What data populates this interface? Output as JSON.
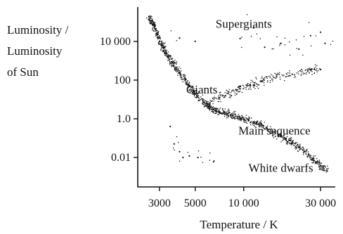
{
  "chart_data": {
    "type": "scatter",
    "title": "",
    "xlabel": "Temperature / K",
    "ylabel_lines": [
      "Luminosity /",
      "Luminosity",
      "of Sun"
    ],
    "x_scale": "reversed-log",
    "y_scale": "log",
    "xlim": [
      2200,
      37000
    ],
    "ylim": [
      0.0003,
      600000
    ],
    "x_ticks": [
      {
        "value": 3000,
        "label": "3000"
      },
      {
        "value": 5000,
        "label": "5000"
      },
      {
        "value": 10000,
        "label": "10 000"
      },
      {
        "value": 30000,
        "label": "30 000"
      }
    ],
    "y_ticks": [
      {
        "value": 0.01,
        "label": "0.01"
      },
      {
        "value": 1,
        "label": "1.0"
      },
      {
        "value": 100,
        "label": "100"
      },
      {
        "value": 10000,
        "label": "10 000"
      }
    ],
    "grid": false,
    "annotations": [
      {
        "text": "Supergiants",
        "x": 10000,
        "y": 50000
      },
      {
        "text": "Giants",
        "x": 5500,
        "y": 20
      },
      {
        "text": "Main sequence",
        "x": 15500,
        "y": 0.15
      },
      {
        "text": "White dwarfs",
        "x": 17000,
        "y": 0.0018
      }
    ],
    "series": [
      {
        "region": "main sequence",
        "x": [
          2600,
          2800,
          3000,
          3300,
          3600,
          4000,
          4500,
          5000,
          5800,
          6500,
          7500,
          8500,
          10000,
          12000,
          14000,
          17000,
          20000,
          24000,
          28000,
          33000
        ],
        "y": [
          200000,
          50000,
          10000,
          2500,
          800,
          250,
          60,
          20,
          6,
          3,
          2,
          1.5,
          1,
          0.6,
          0.3,
          0.12,
          0.06,
          0.02,
          0.006,
          0.002
        ]
      },
      {
        "region": "giants",
        "x": [
          6000,
          7000,
          8000,
          9500,
          11000,
          13000,
          16000,
          20000,
          25000,
          30000
        ],
        "y": [
          6,
          12,
          20,
          35,
          55,
          90,
          150,
          200,
          300,
          350
        ]
      },
      {
        "region": "supergiants",
        "x": [
          4000,
          5000,
          9500,
          11500,
          13500,
          17000,
          22000,
          26000,
          30000,
          32000
        ],
        "y": [
          15000,
          10000,
          14000,
          50000,
          5000,
          8000,
          4000,
          20000,
          30000,
          8000
        ]
      },
      {
        "region": "white dwarfs",
        "x": [
          3500,
          3700,
          4000,
          4200,
          4600,
          5200,
          6500
        ],
        "y": [
          0.4,
          0.05,
          0.02,
          0.01,
          0.012,
          0.01,
          0.006
        ]
      }
    ]
  }
}
